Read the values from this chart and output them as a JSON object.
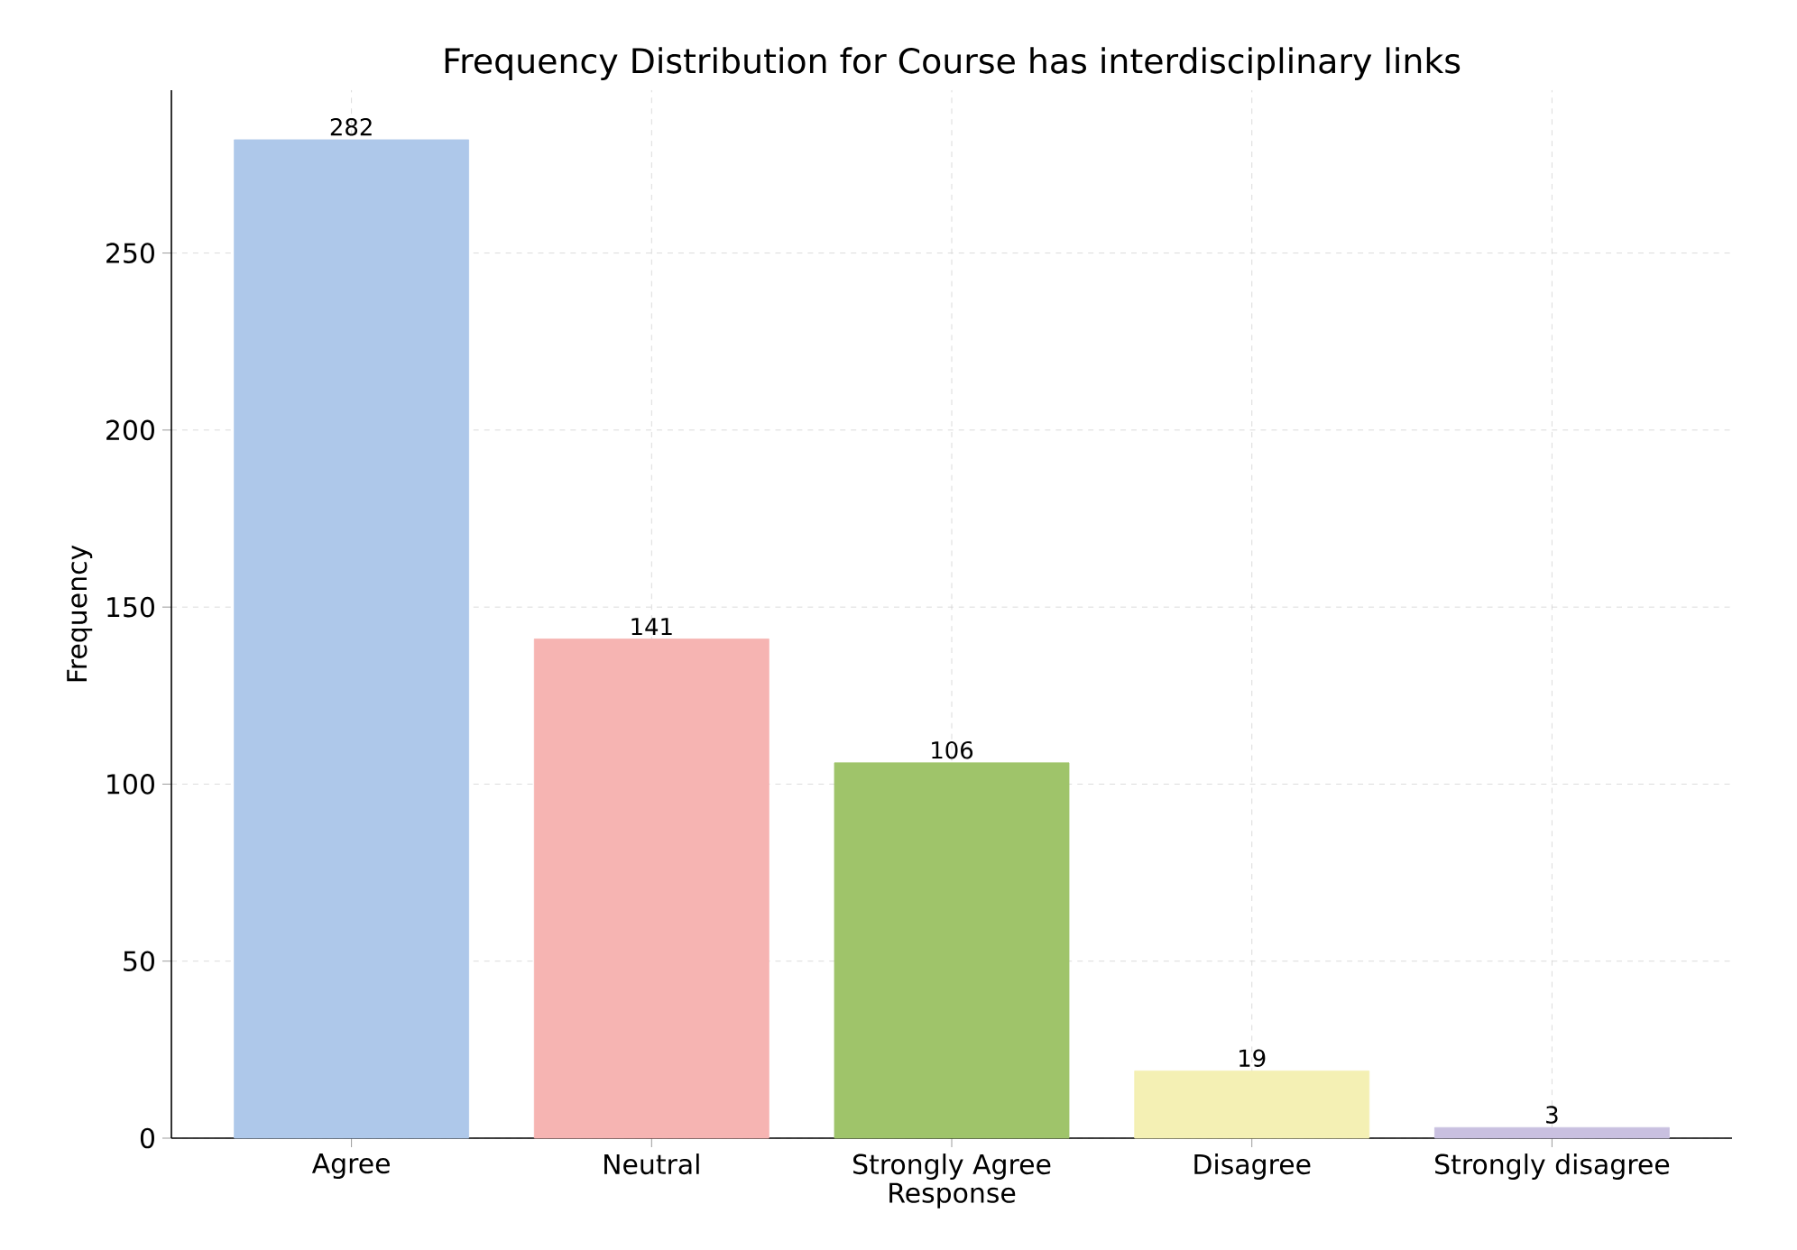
{
  "chart_data": {
    "type": "bar",
    "title": "Frequency Distribution for Course has interdisciplinary links",
    "xlabel": "Response",
    "ylabel": "Frequency",
    "categories": [
      "Agree",
      "Neutral",
      "Strongly Agree",
      "Disagree",
      "Strongly disagree"
    ],
    "values": [
      282,
      141,
      106,
      19,
      3
    ],
    "colors": [
      "#aec8ea",
      "#f6b4b2",
      "#9fc46a",
      "#f4f0b4",
      "#c9c0e0"
    ],
    "data_labels": true,
    "ylim": [
      0,
      296
    ],
    "yticks": [
      0,
      50,
      100,
      150,
      200,
      250
    ],
    "grid": true
  }
}
